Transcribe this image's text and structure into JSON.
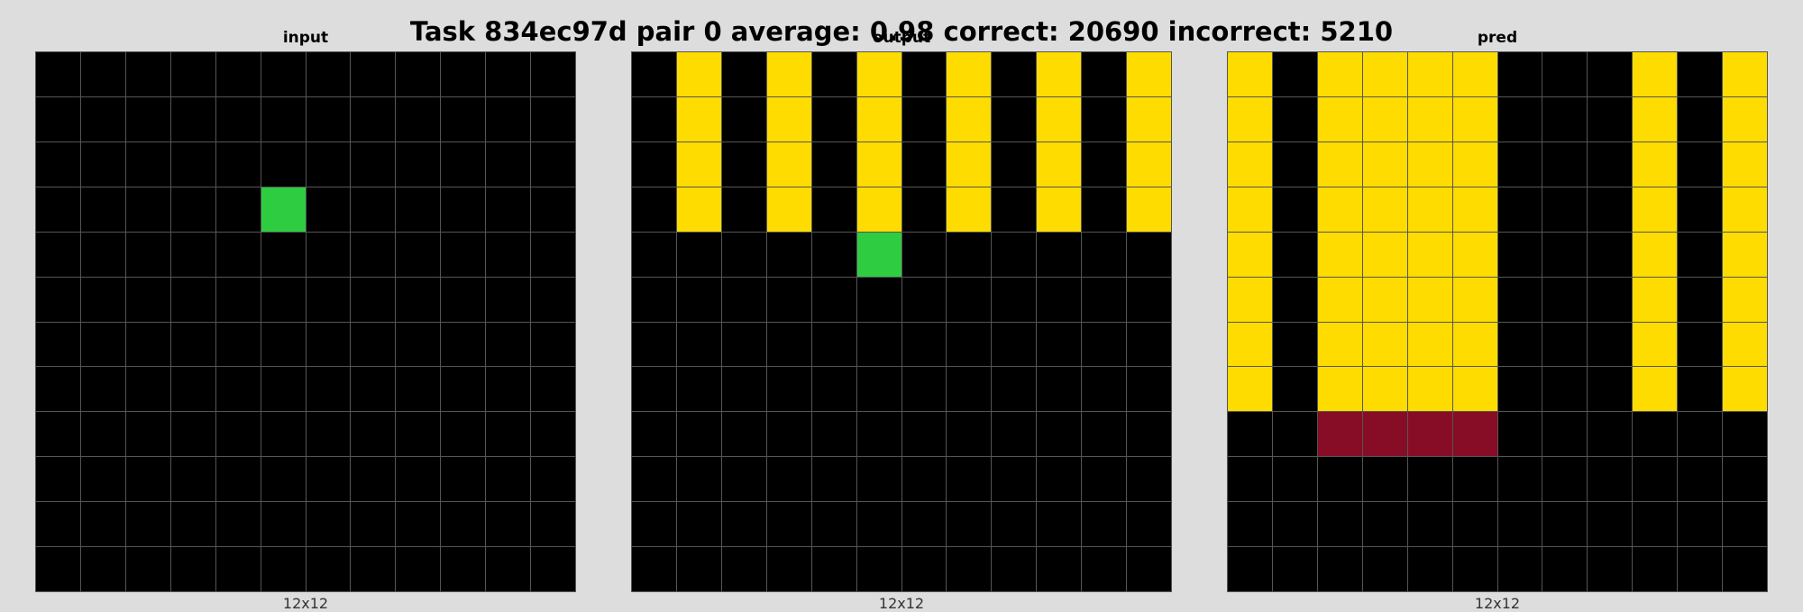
{
  "title": "Task 834ec97d pair 0 average: 0.98 correct: 20690 incorrect: 5210",
  "colors": {
    "0": "#000000",
    "3": "#2ecc40",
    "4": "#ffdc00",
    "9": "#870c25"
  },
  "panels": [
    {
      "id": "input",
      "label": "input",
      "size_label": "12x12",
      "grid": [
        [
          0,
          0,
          0,
          0,
          0,
          0,
          0,
          0,
          0,
          0,
          0,
          0
        ],
        [
          0,
          0,
          0,
          0,
          0,
          0,
          0,
          0,
          0,
          0,
          0,
          0
        ],
        [
          0,
          0,
          0,
          0,
          0,
          0,
          0,
          0,
          0,
          0,
          0,
          0
        ],
        [
          0,
          0,
          0,
          0,
          0,
          3,
          0,
          0,
          0,
          0,
          0,
          0
        ],
        [
          0,
          0,
          0,
          0,
          0,
          0,
          0,
          0,
          0,
          0,
          0,
          0
        ],
        [
          0,
          0,
          0,
          0,
          0,
          0,
          0,
          0,
          0,
          0,
          0,
          0
        ],
        [
          0,
          0,
          0,
          0,
          0,
          0,
          0,
          0,
          0,
          0,
          0,
          0
        ],
        [
          0,
          0,
          0,
          0,
          0,
          0,
          0,
          0,
          0,
          0,
          0,
          0
        ],
        [
          0,
          0,
          0,
          0,
          0,
          0,
          0,
          0,
          0,
          0,
          0,
          0
        ],
        [
          0,
          0,
          0,
          0,
          0,
          0,
          0,
          0,
          0,
          0,
          0,
          0
        ],
        [
          0,
          0,
          0,
          0,
          0,
          0,
          0,
          0,
          0,
          0,
          0,
          0
        ],
        [
          0,
          0,
          0,
          0,
          0,
          0,
          0,
          0,
          0,
          0,
          0,
          0
        ]
      ]
    },
    {
      "id": "output",
      "label": "output",
      "size_label": "12x12",
      "grid": [
        [
          0,
          4,
          0,
          4,
          0,
          4,
          0,
          4,
          0,
          4,
          0,
          4
        ],
        [
          0,
          4,
          0,
          4,
          0,
          4,
          0,
          4,
          0,
          4,
          0,
          4
        ],
        [
          0,
          4,
          0,
          4,
          0,
          4,
          0,
          4,
          0,
          4,
          0,
          4
        ],
        [
          0,
          4,
          0,
          4,
          0,
          4,
          0,
          4,
          0,
          4,
          0,
          4
        ],
        [
          0,
          0,
          0,
          0,
          0,
          3,
          0,
          0,
          0,
          0,
          0,
          0
        ],
        [
          0,
          0,
          0,
          0,
          0,
          0,
          0,
          0,
          0,
          0,
          0,
          0
        ],
        [
          0,
          0,
          0,
          0,
          0,
          0,
          0,
          0,
          0,
          0,
          0,
          0
        ],
        [
          0,
          0,
          0,
          0,
          0,
          0,
          0,
          0,
          0,
          0,
          0,
          0
        ],
        [
          0,
          0,
          0,
          0,
          0,
          0,
          0,
          0,
          0,
          0,
          0,
          0
        ],
        [
          0,
          0,
          0,
          0,
          0,
          0,
          0,
          0,
          0,
          0,
          0,
          0
        ],
        [
          0,
          0,
          0,
          0,
          0,
          0,
          0,
          0,
          0,
          0,
          0,
          0
        ],
        [
          0,
          0,
          0,
          0,
          0,
          0,
          0,
          0,
          0,
          0,
          0,
          0
        ]
      ]
    },
    {
      "id": "pred",
      "label": "pred",
      "size_label": "12x12",
      "grid": [
        [
          4,
          0,
          4,
          4,
          4,
          4,
          0,
          0,
          0,
          4,
          0,
          4
        ],
        [
          4,
          0,
          4,
          4,
          4,
          4,
          0,
          0,
          0,
          4,
          0,
          4
        ],
        [
          4,
          0,
          4,
          4,
          4,
          4,
          0,
          0,
          0,
          4,
          0,
          4
        ],
        [
          4,
          0,
          4,
          4,
          4,
          4,
          0,
          0,
          0,
          4,
          0,
          4
        ],
        [
          4,
          0,
          4,
          4,
          4,
          4,
          0,
          0,
          0,
          4,
          0,
          4
        ],
        [
          4,
          0,
          4,
          4,
          4,
          4,
          0,
          0,
          0,
          4,
          0,
          4
        ],
        [
          4,
          0,
          4,
          4,
          4,
          4,
          0,
          0,
          0,
          4,
          0,
          4
        ],
        [
          4,
          0,
          4,
          4,
          4,
          4,
          0,
          0,
          0,
          4,
          0,
          4
        ],
        [
          0,
          0,
          9,
          9,
          9,
          9,
          0,
          0,
          0,
          0,
          0,
          0
        ],
        [
          0,
          0,
          0,
          0,
          0,
          0,
          0,
          0,
          0,
          0,
          0,
          0
        ],
        [
          0,
          0,
          0,
          0,
          0,
          0,
          0,
          0,
          0,
          0,
          0,
          0
        ],
        [
          0,
          0,
          0,
          0,
          0,
          0,
          0,
          0,
          0,
          0,
          0,
          0
        ]
      ]
    }
  ]
}
